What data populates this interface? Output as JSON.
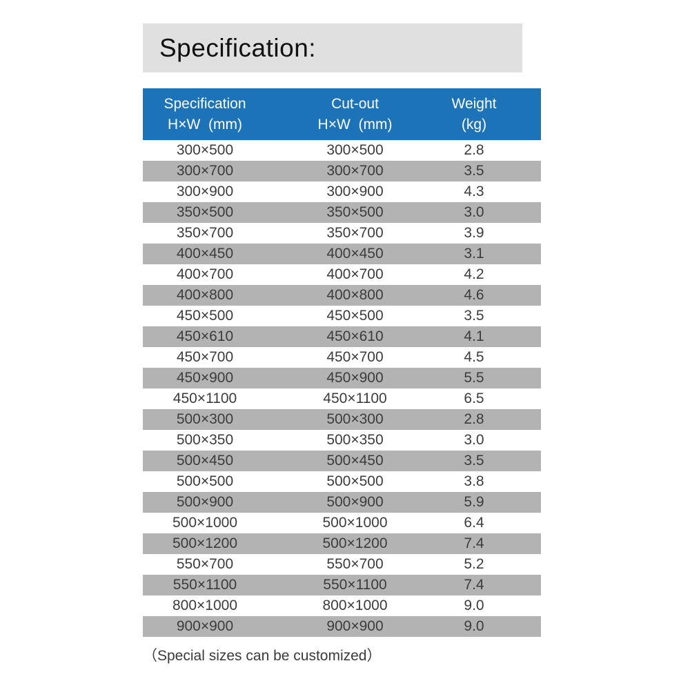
{
  "title": "Specification:",
  "colors": {
    "header_blue": "#1d73b8",
    "row_gray": "#b3b3b3",
    "banner_gray": "#e0e0e0"
  },
  "table": {
    "columns": [
      {
        "line1": "Specification",
        "line2": "H×W  (mm)"
      },
      {
        "line1": "Cut-out",
        "line2": "H×W  (mm)"
      },
      {
        "line1": "Weight",
        "line2": "(kg)"
      }
    ],
    "rows": [
      {
        "spec": "300×500",
        "cutout": "300×500",
        "weight": "2.8"
      },
      {
        "spec": "300×700",
        "cutout": "300×700",
        "weight": "3.5"
      },
      {
        "spec": "300×900",
        "cutout": "300×900",
        "weight": "4.3"
      },
      {
        "spec": "350×500",
        "cutout": "350×500",
        "weight": "3.0"
      },
      {
        "spec": "350×700",
        "cutout": "350×700",
        "weight": "3.9"
      },
      {
        "spec": "400×450",
        "cutout": "400×450",
        "weight": "3.1"
      },
      {
        "spec": "400×700",
        "cutout": "400×700",
        "weight": "4.2"
      },
      {
        "spec": "400×800",
        "cutout": "400×800",
        "weight": "4.6"
      },
      {
        "spec": "450×500",
        "cutout": "450×500",
        "weight": "3.5"
      },
      {
        "spec": "450×610",
        "cutout": "450×610",
        "weight": "4.1"
      },
      {
        "spec": "450×700",
        "cutout": "450×700",
        "weight": "4.5"
      },
      {
        "spec": "450×900",
        "cutout": "450×900",
        "weight": "5.5"
      },
      {
        "spec": "450×1100",
        "cutout": "450×1100",
        "weight": "6.5"
      },
      {
        "spec": "500×300",
        "cutout": "500×300",
        "weight": "2.8"
      },
      {
        "spec": "500×350",
        "cutout": "500×350",
        "weight": "3.0"
      },
      {
        "spec": "500×450",
        "cutout": "500×450",
        "weight": "3.5"
      },
      {
        "spec": "500×500",
        "cutout": "500×500",
        "weight": "3.8"
      },
      {
        "spec": "500×900",
        "cutout": "500×900",
        "weight": "5.9"
      },
      {
        "spec": "500×1000",
        "cutout": "500×1000",
        "weight": "6.4"
      },
      {
        "spec": "500×1200",
        "cutout": "500×1200",
        "weight": "7.4"
      },
      {
        "spec": "550×700",
        "cutout": "550×700",
        "weight": "5.2"
      },
      {
        "spec": "550×1100",
        "cutout": "550×1100",
        "weight": "7.4"
      },
      {
        "spec": "800×1000",
        "cutout": "800×1000",
        "weight": "9.0"
      },
      {
        "spec": "900×900",
        "cutout": "900×900",
        "weight": "9.0"
      }
    ]
  },
  "footer": "（Special sizes can be customized）"
}
